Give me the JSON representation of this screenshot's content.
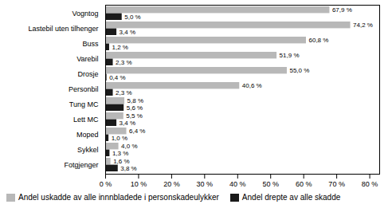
{
  "chart_data": {
    "type": "bar",
    "orientation": "horizontal",
    "categories": [
      "Fotgjenger",
      "Sykkel",
      "Moped",
      "Lett MC",
      "Tung MC",
      "Personbil",
      "Drosje",
      "Varebil",
      "Buss",
      "Lastebil uten tilhenger",
      "Vogntog"
    ],
    "series": [
      {
        "name": "Andel uskadde av alle innnbladede i personskadeulykker",
        "color": "#b8b8b8",
        "values": [
          1.6,
          4.0,
          6.4,
          5.5,
          5.8,
          40.6,
          55.0,
          51.9,
          60.8,
          74.2,
          67.9
        ],
        "value_labels": [
          "1,6 %",
          "4,0 %",
          "6,4 %",
          "5,5 %",
          "5,8 %",
          "40,6 %",
          "55,0 %",
          "51,9 %",
          "60,8 %",
          "74,2 %",
          "67,9 %"
        ]
      },
      {
        "name": "Andel drepte av alle skadde",
        "color": "#1a1a1a",
        "values": [
          3.8,
          1.3,
          1.0,
          3.4,
          5.6,
          2.3,
          0.4,
          2.3,
          1.2,
          3.4,
          5.0
        ],
        "value_labels": [
          "3,8 %",
          "1,3 %",
          "1,0 %",
          "3,4 %",
          "5,6 %",
          "2,3 %",
          "0,4 %",
          "2,3 %",
          "1,2 %",
          "3,4 %",
          "5,0 %"
        ]
      }
    ],
    "xlim": [
      0,
      83
    ],
    "xticks": [
      {
        "value": 0,
        "label": "0 %"
      },
      {
        "value": 10,
        "label": "10 %"
      },
      {
        "value": 20,
        "label": "20 %"
      },
      {
        "value": 30,
        "label": "30 %"
      },
      {
        "value": 40,
        "label": "40 %"
      },
      {
        "value": 50,
        "label": "50 %"
      },
      {
        "value": 60,
        "label": "60 %"
      },
      {
        "value": 70,
        "label": "70 %"
      },
      {
        "value": 80,
        "label": "80 %"
      }
    ],
    "data_labels": true,
    "grid": false,
    "legend": "bottom"
  }
}
